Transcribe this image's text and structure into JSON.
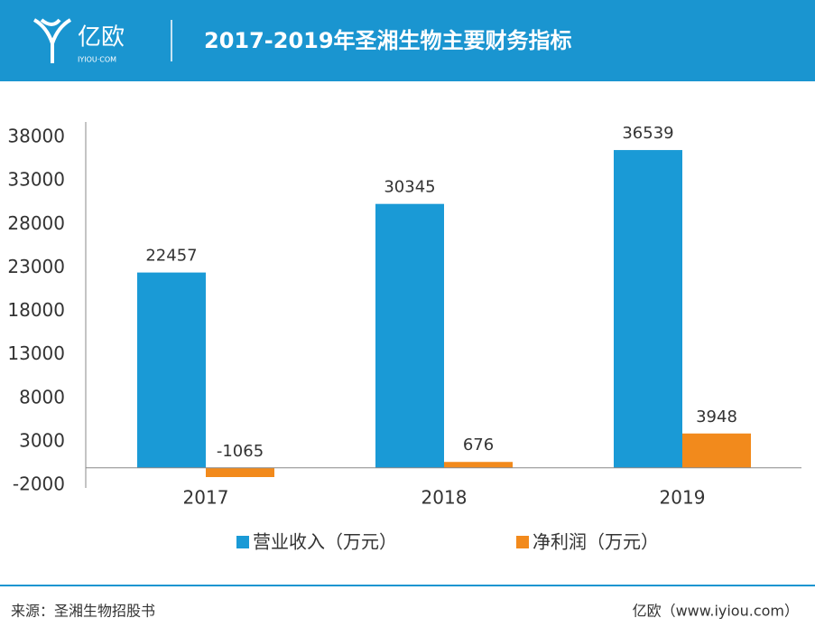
{
  "header": {
    "logo": "亿欧",
    "logo_sub": "IYIOU·COM"
  },
  "chart_data": {
    "type": "bar",
    "title": "2017-2019年圣湘生物主要财务指标",
    "categories": [
      "2017",
      "2018",
      "2019"
    ],
    "series": [
      {
        "name": "营业收入（万元）",
        "color": "#1a9ad6",
        "values": [
          22457,
          30345,
          36539
        ]
      },
      {
        "name": "净利润（万元）",
        "color": "#f28a1c",
        "values": [
          -1065,
          676,
          3948
        ]
      }
    ],
    "ylim": [
      -2000,
      38000
    ],
    "yticks": [
      -2000,
      3000,
      8000,
      13000,
      18000,
      23000,
      28000,
      33000,
      38000
    ],
    "grid": false,
    "legend": "bottom"
  },
  "footer": {
    "source": "来源：圣湘生物招股书",
    "site": "亿欧（www.iyiou.com）"
  }
}
